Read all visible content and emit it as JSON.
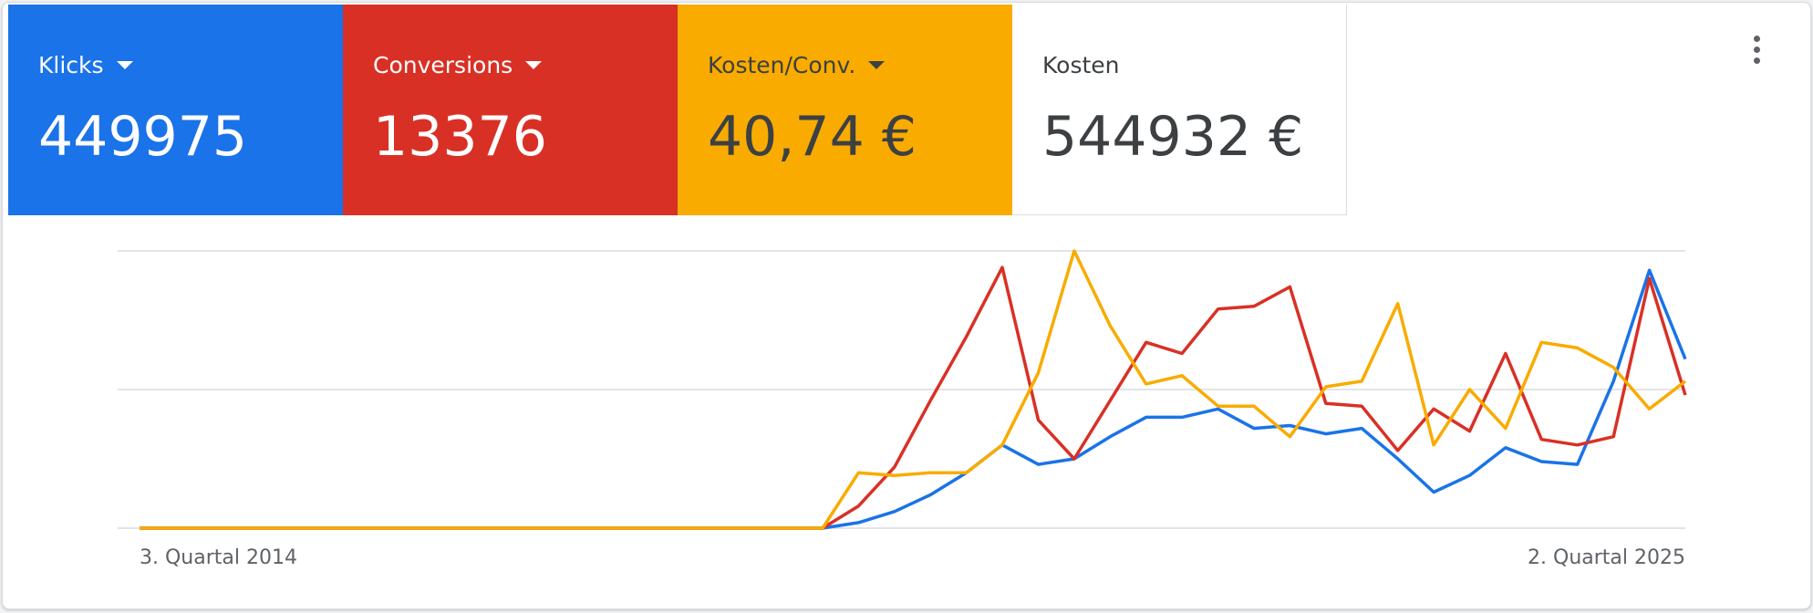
{
  "scorecards": [
    {
      "label": "Klicks",
      "value": "449975",
      "color": "#1a73e8",
      "text_color": "#ffffff",
      "dropdown": true
    },
    {
      "label": "Conversions",
      "value": "13376",
      "color": "#d93025",
      "text_color": "#ffffff",
      "dropdown": true
    },
    {
      "label": "Kosten/Conv.",
      "value": "40,74 €",
      "color": "#f9ab00",
      "text_color": "#3c4043",
      "dropdown": true
    },
    {
      "label": "Kosten",
      "value": "544932 €",
      "color": "#ffffff",
      "text_color": "#3c4043",
      "dropdown": false
    }
  ],
  "chart_data": {
    "type": "line",
    "categories": [
      "3. Quartal 2014",
      null,
      null,
      null,
      null,
      null,
      null,
      null,
      null,
      null,
      null,
      null,
      null,
      null,
      null,
      null,
      null,
      null,
      null,
      null,
      null,
      null,
      null,
      null,
      null,
      null,
      null,
      null,
      null,
      null,
      null,
      null,
      null,
      null,
      null,
      null,
      null,
      null,
      null,
      null,
      null,
      null,
      null,
      "2. Quartal 2025"
    ],
    "ylim": [
      0,
      100
    ],
    "yticks": [
      0,
      50,
      100
    ],
    "grid": true,
    "series": [
      {
        "color": "#1a73e8",
        "values": [
          0,
          0,
          0,
          0,
          0,
          0,
          0,
          0,
          0,
          0,
          0,
          0,
          0,
          0,
          0,
          0,
          0,
          0,
          0,
          0,
          2,
          6,
          12,
          20,
          30,
          23,
          25,
          33,
          40,
          40,
          43,
          36,
          37,
          34,
          36,
          25,
          13,
          19,
          29,
          24,
          23,
          53,
          93,
          61
        ]
      },
      {
        "color": "#d93025",
        "values": [
          0,
          0,
          0,
          0,
          0,
          0,
          0,
          0,
          0,
          0,
          0,
          0,
          0,
          0,
          0,
          0,
          0,
          0,
          0,
          0,
          8,
          22,
          46,
          69,
          94,
          39,
          25,
          46,
          67,
          63,
          79,
          80,
          87,
          45,
          44,
          28,
          43,
          35,
          63,
          32,
          30,
          33,
          90,
          48
        ]
      },
      {
        "color": "#f9ab00",
        "values": [
          0,
          0,
          0,
          0,
          0,
          0,
          0,
          0,
          0,
          0,
          0,
          0,
          0,
          0,
          0,
          0,
          0,
          0,
          0,
          0,
          20,
          19,
          20,
          20,
          30,
          56,
          100,
          73,
          52,
          55,
          44,
          44,
          33,
          51,
          53,
          81,
          30,
          50,
          36,
          67,
          65,
          58,
          43,
          53
        ]
      }
    ]
  }
}
